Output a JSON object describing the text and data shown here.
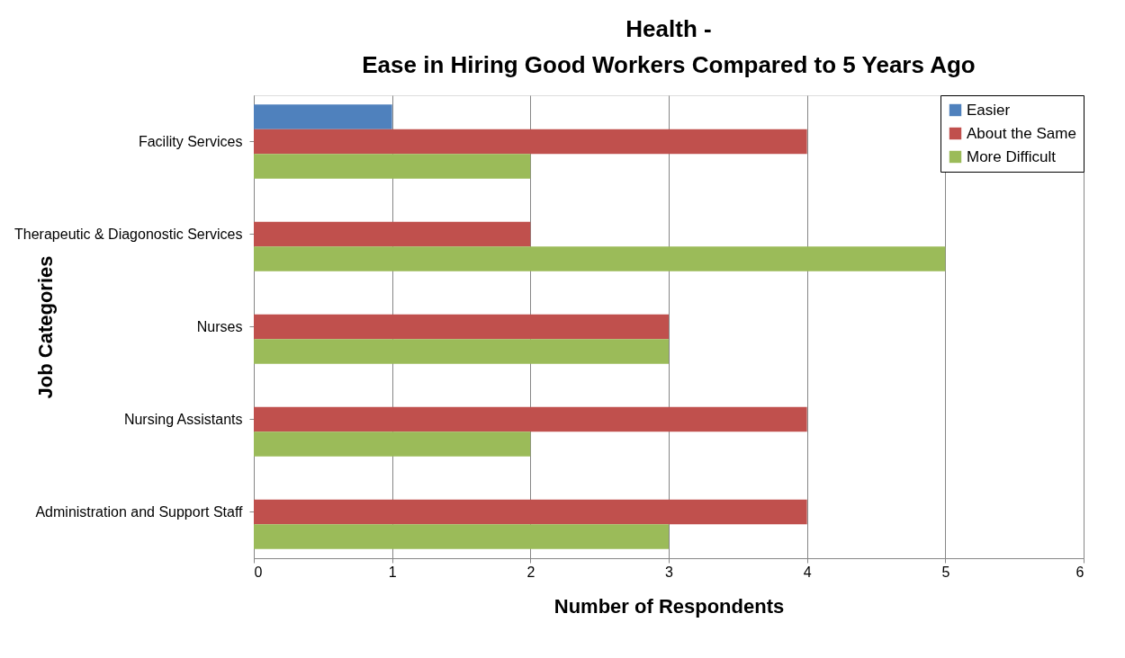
{
  "chart_data": {
    "type": "bar",
    "orientation": "horizontal",
    "title": "Health -\nEase in Hiring Good Workers Compared to 5 Years Ago",
    "xlabel": "Number of Respondents",
    "ylabel": "Job Categories",
    "categories": [
      "Facility Services",
      "Therapeutic & Diagonostic Services",
      "Nurses",
      "Nursing Assistants",
      "Administration and Support  Staff"
    ],
    "series": [
      {
        "name": "Easier",
        "color": "#4f81bd",
        "values": [
          1,
          0,
          0,
          0,
          0
        ]
      },
      {
        "name": "About the Same",
        "color": "#c0504d",
        "values": [
          4,
          2,
          3,
          4,
          4
        ]
      },
      {
        "name": "More Difficult",
        "color": "#9bbb59",
        "values": [
          2,
          5,
          3,
          2,
          3
        ]
      }
    ],
    "xlim": [
      0,
      6
    ],
    "xticks": [
      0,
      1,
      2,
      3,
      4,
      5,
      6
    ],
    "grid": "x",
    "legend": "top right"
  }
}
